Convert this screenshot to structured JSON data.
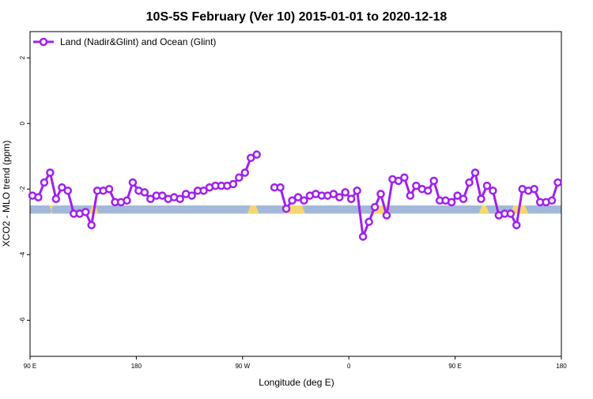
{
  "chart_data": {
    "type": "line",
    "title": "10S-5S February (Ver 10)   2015-01-01 to 2020-12-18",
    "xlabel": "Longitude (deg E)",
    "ylabel": "XCO2 - MLO trend (ppm)",
    "xlim": [
      90,
      540
    ],
    "ylim": [
      -7.1,
      2.8
    ],
    "x_ticks": [
      {
        "value": 90,
        "label": "90 E"
      },
      {
        "value": 180,
        "label": "180"
      },
      {
        "value": 270,
        "label": "90 W"
      },
      {
        "value": 360,
        "label": "0"
      },
      {
        "value": 450,
        "label": "90 E"
      },
      {
        "value": 540,
        "label": "180"
      }
    ],
    "y_ticks": [
      {
        "value": 2,
        "label": "2"
      },
      {
        "value": 0,
        "label": "0"
      },
      {
        "value": -2,
        "label": "-2"
      },
      {
        "value": -4,
        "label": "-4"
      },
      {
        "value": -6,
        "label": "-6"
      }
    ],
    "legend_position": "top-left",
    "colors": {
      "series": "#a020f0",
      "ocean": "#a3b8d8",
      "land": "#f4d770"
    },
    "surface_band": {
      "y_range": [
        -2.75,
        -2.5
      ],
      "land_segments": [
        [
          107,
          109
        ],
        [
          140,
          148
        ],
        [
          274,
          284
        ],
        [
          305,
          323
        ],
        [
          379,
          395
        ],
        [
          470,
          479
        ],
        [
          497,
          512
        ]
      ]
    },
    "series": [
      {
        "name": "Land (Nadir&Glint) and Ocean (Glint)",
        "segments": [
          {
            "x": [
              92,
              97,
              102,
              107,
              112,
              117,
              122,
              127,
              132,
              137,
              142,
              147,
              152,
              157,
              162,
              167,
              172,
              177,
              182,
              187,
              192,
              197,
              202,
              207,
              212,
              217,
              222,
              227,
              232,
              237,
              242,
              247,
              252,
              257,
              262,
              267,
              272,
              277,
              282
            ],
            "y": [
              -2.2,
              -2.25,
              -1.8,
              -1.5,
              -2.3,
              -1.95,
              -2.05,
              -2.75,
              -2.75,
              -2.7,
              -3.1,
              -2.05,
              -2.05,
              -2.0,
              -2.4,
              -2.4,
              -2.35,
              -1.8,
              -2.05,
              -2.1,
              -2.3,
              -2.2,
              -2.2,
              -2.3,
              -2.25,
              -2.3,
              -2.15,
              -2.2,
              -2.05,
              -2.05,
              -1.95,
              -1.9,
              -1.9,
              -1.9,
              -1.85,
              -1.65,
              -1.5,
              -1.05,
              -0.95
            ]
          },
          {
            "x": [
              297,
              302,
              307,
              312,
              317,
              322,
              327,
              332,
              337,
              342,
              347,
              352,
              357,
              362,
              367,
              372,
              377,
              382,
              387,
              392,
              397,
              402,
              407,
              412,
              417,
              422,
              427,
              432,
              437,
              442,
              447,
              452,
              457,
              462,
              467,
              472,
              477,
              482,
              487,
              492,
              497,
              502,
              507,
              512,
              517,
              522,
              527,
              532,
              537
            ],
            "y": [
              -1.95,
              -1.95,
              -2.6,
              -2.35,
              -2.25,
              -2.35,
              -2.2,
              -2.15,
              -2.2,
              -2.2,
              -2.15,
              -2.25,
              -2.1,
              -2.3,
              -2.05,
              -3.45,
              -3.0,
              -2.55,
              -2.15,
              -2.8,
              -1.7,
              -1.75,
              -1.65,
              -2.2,
              -1.9,
              -2.0,
              -2.05,
              -1.75,
              -2.35,
              -2.35,
              -2.4,
              -2.2,
              -2.3,
              -1.8,
              -1.5,
              -2.3,
              -1.9,
              -2.05,
              -2.8,
              -2.75,
              -2.75,
              -3.1,
              -2.0,
              -2.05,
              -2.0,
              -2.4,
              -2.4,
              -2.35,
              -1.8
            ]
          }
        ]
      }
    ]
  }
}
